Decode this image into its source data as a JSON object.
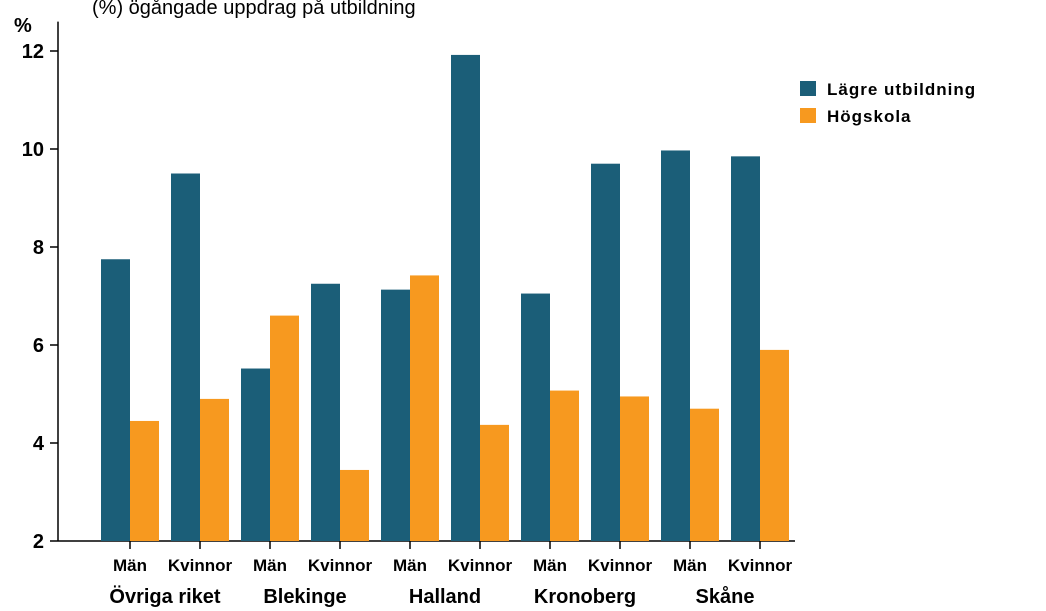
{
  "header": {
    "partial_title": "(%) ... gångade ... uppdra ... på ... utbildning"
  },
  "chart_data": {
    "type": "bar",
    "ylabel": "%",
    "ylim": [
      2,
      12.6
    ],
    "yticks": [
      2,
      4,
      6,
      8,
      10,
      12
    ],
    "grid": false,
    "legend_position": "top-right",
    "categories": [
      "Män",
      "Kvinnor",
      "Män",
      "Kvinnor",
      "Män",
      "Kvinnor",
      "Män",
      "Kvinnor",
      "Män",
      "Kvinnor"
    ],
    "groups": [
      "Övriga riket",
      "Blekinge",
      "Halland",
      "Kronoberg",
      "Skåne"
    ],
    "series": [
      {
        "name": "Lägre utbildning",
        "color": "#1b5e78",
        "values": [
          7.75,
          9.5,
          5.52,
          7.25,
          7.13,
          11.92,
          7.05,
          9.7,
          9.97,
          9.85
        ]
      },
      {
        "name": "Högskola",
        "color": "#f7991f",
        "values": [
          4.45,
          4.9,
          6.6,
          3.45,
          7.42,
          4.37,
          5.07,
          4.95,
          4.7,
          5.9
        ]
      }
    ]
  }
}
